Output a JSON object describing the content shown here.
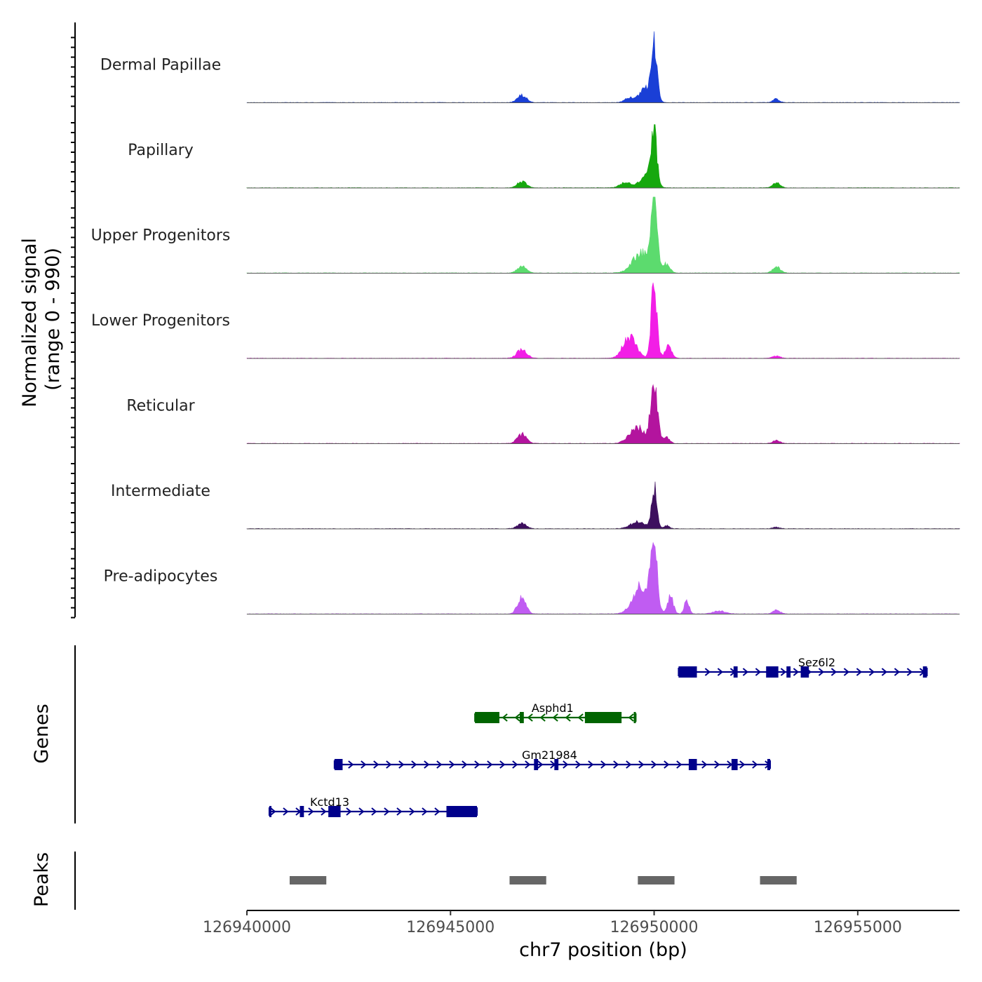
{
  "chart_data": {
    "type": "area",
    "title": "",
    "xlabel": "chr7 position (bp)",
    "xlim": [
      126940000,
      126957500
    ],
    "x_ticks": [
      {
        "value": 126940000,
        "label": "126940000"
      },
      {
        "value": 126945000,
        "label": "126945000"
      },
      {
        "value": 126950000,
        "label": "126950000"
      },
      {
        "value": 126955000,
        "label": "126955000"
      }
    ],
    "coverage": {
      "ylabel_line1": "Normalized signal",
      "ylabel_line2": "(range 0 - 990)",
      "ylim": [
        0,
        990
      ],
      "series": [
        {
          "name": "Dermal Papillae",
          "color": "#1a3fd6",
          "peaks": [
            [
              126946750,
              95,
              110
            ],
            [
              126949800,
              180,
              150
            ],
            [
              126950000,
              720,
              70
            ],
            [
              126949400,
              60,
              120
            ],
            [
              126953000,
              45,
              80
            ]
          ]
        },
        {
          "name": "Papillary",
          "color": "#16a80e",
          "peaks": [
            [
              126946750,
              80,
              110
            ],
            [
              126949800,
              160,
              150
            ],
            [
              126950000,
              690,
              70
            ],
            [
              126949300,
              70,
              130
            ],
            [
              126953000,
              65,
              90
            ]
          ]
        },
        {
          "name": "Upper Progenitors",
          "color": "#5cdb6e",
          "peaks": [
            [
              126946750,
              90,
              110
            ],
            [
              126949700,
              260,
              220
            ],
            [
              126950000,
              980,
              70
            ],
            [
              126950300,
              110,
              90
            ],
            [
              126953000,
              90,
              90
            ]
          ]
        },
        {
          "name": "Lower Progenitors",
          "color": "#f21ee6",
          "peaks": [
            [
              126946750,
              110,
              120
            ],
            [
              126949400,
              280,
              160
            ],
            [
              126950000,
              950,
              70
            ],
            [
              126950350,
              160,
              80
            ],
            [
              126953000,
              30,
              90
            ]
          ]
        },
        {
          "name": "Reticular",
          "color": "#b3149e",
          "peaks": [
            [
              126946750,
              120,
              110
            ],
            [
              126949600,
              200,
              200
            ],
            [
              126950000,
              780,
              80
            ],
            [
              126950300,
              80,
              80
            ],
            [
              126953000,
              40,
              90
            ]
          ]
        },
        {
          "name": "Intermediate",
          "color": "#3d0f5e",
          "peaks": [
            [
              126946750,
              70,
              110
            ],
            [
              126949600,
              90,
              180
            ],
            [
              126950000,
              530,
              65
            ],
            [
              126950300,
              40,
              70
            ],
            [
              126953000,
              20,
              90
            ]
          ]
        },
        {
          "name": "Pre-adipocytes",
          "color": "#c05cf2",
          "peaks": [
            [
              126946750,
              230,
              100
            ],
            [
              126949700,
              380,
              200
            ],
            [
              126950000,
              860,
              75
            ],
            [
              126950400,
              230,
              70
            ],
            [
              126950800,
              170,
              60
            ],
            [
              126951600,
              40,
              150
            ],
            [
              126953000,
              50,
              90
            ]
          ]
        }
      ]
    },
    "genes": {
      "ylabel": "Genes",
      "items": [
        {
          "name": "Sez6l2",
          "strand": "+",
          "color": "#00008b",
          "start": 126950600,
          "end": 126956700,
          "exons": [
            [
              126950600,
              126951050
            ],
            [
              126951950,
              126952050
            ],
            [
              126952750,
              126953050
            ],
            [
              126953250,
              126953350
            ],
            [
              126953600,
              126953800
            ],
            [
              126956600,
              126956700
            ]
          ]
        },
        {
          "name": "Asphd1",
          "strand": "-",
          "color": "#006400",
          "start": 126945600,
          "end": 126949550,
          "exons": [
            [
              126945600,
              126946200
            ],
            [
              126946700,
              126946800
            ],
            [
              126948300,
              126949200
            ],
            [
              126949500,
              126949550
            ]
          ]
        },
        {
          "name": "Gm21984",
          "strand": "+",
          "color": "#00008b",
          "start": 126942150,
          "end": 126952850,
          "exons": [
            [
              126942150,
              126942350
            ],
            [
              126947050,
              126947150
            ],
            [
              126947550,
              126947650
            ],
            [
              126950850,
              126951050
            ],
            [
              126951900,
              126952050
            ],
            [
              126952780,
              126952850
            ]
          ]
        },
        {
          "name": "Kctd13",
          "strand": "+",
          "color": "#00008b",
          "start": 126940550,
          "end": 126945650,
          "exons": [
            [
              126940550,
              126940600
            ],
            [
              126941300,
              126941400
            ],
            [
              126942000,
              126942300
            ],
            [
              126944900,
              126945650
            ]
          ]
        }
      ]
    },
    "peaks": {
      "ylabel": "Peaks",
      "color": "#666666",
      "regions": [
        [
          126941050,
          126941950
        ],
        [
          126946450,
          126947350
        ],
        [
          126949600,
          126950500
        ],
        [
          126952600,
          126953500
        ]
      ]
    }
  }
}
